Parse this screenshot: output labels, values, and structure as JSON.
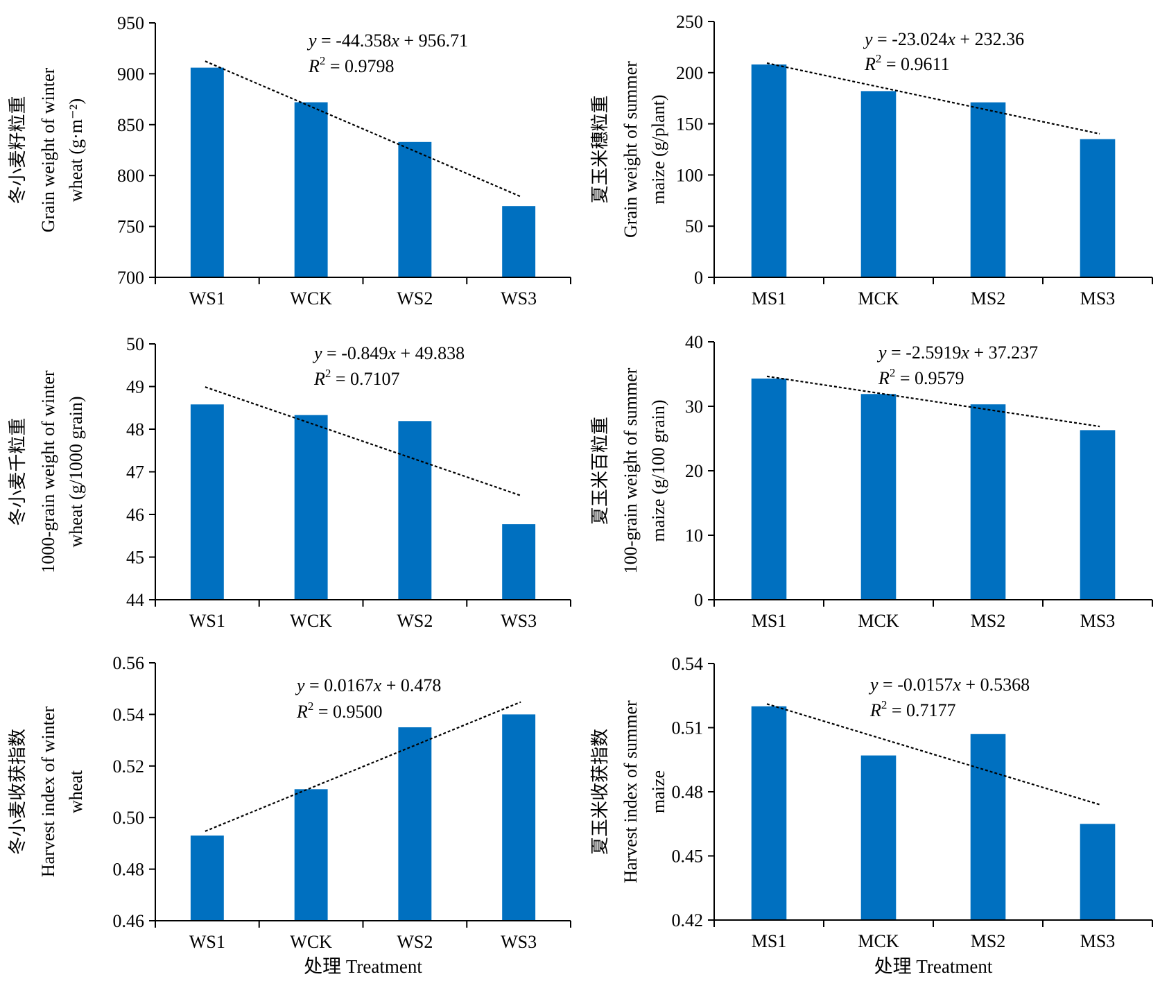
{
  "bar_color": "#0070C0",
  "trend_color": "#000000",
  "chart_data": [
    {
      "type": "bar",
      "id": "wheat-grain-weight",
      "categories": [
        "WS1",
        "WCK",
        "WS2",
        "WS3"
      ],
      "values": [
        906,
        872,
        833,
        770
      ],
      "ylim": [
        700,
        950
      ],
      "yticks": [
        "700",
        "750",
        "800",
        "850",
        "900",
        "950"
      ],
      "ylabel": [
        "冬小麦籽粒重",
        "Grain weight of winter",
        "wheat (g·m⁻²)"
      ],
      "xlabel": "",
      "trendline": {
        "slope": -44.358,
        "intercept": 956.71
      },
      "equation": {
        "lhs": "y",
        "rhs": " = -44.358",
        "x": "x",
        "tail": " + 956.71",
        "r_label": "R",
        "r_sup": "2",
        "r_value": " = 0.9798"
      }
    },
    {
      "type": "bar",
      "id": "maize-grain-weight",
      "categories": [
        "MS1",
        "MCK",
        "MS2",
        "MS3"
      ],
      "values": [
        208,
        182,
        171,
        135
      ],
      "ylim": [
        0,
        250
      ],
      "yticks": [
        "0",
        "50",
        "100",
        "150",
        "200",
        "250"
      ],
      "ylabel": [
        "夏玉米穗粒重",
        "Grain weight of summer",
        "maize (g/plant)"
      ],
      "xlabel": "",
      "trendline": {
        "slope": -23.024,
        "intercept": 232.36
      },
      "equation": {
        "lhs": "y",
        "rhs": " = -23.024",
        "x": "x",
        "tail": " + 232.36",
        "r_label": "R",
        "r_sup": "2",
        "r_value": " = 0.9611"
      }
    },
    {
      "type": "bar",
      "id": "wheat-1000-grain-weight",
      "categories": [
        "WS1",
        "WCK",
        "WS2",
        "WS3"
      ],
      "values": [
        48.58,
        48.33,
        48.19,
        45.77
      ],
      "ylim": [
        44,
        50
      ],
      "yticks": [
        "44",
        "45",
        "46",
        "47",
        "48",
        "49",
        "50"
      ],
      "ylabel": [
        "冬小麦千粒重",
        "1000-grain weight of winter",
        "wheat (g/1000 grain)"
      ],
      "xlabel": "",
      "trendline": {
        "slope": -0.849,
        "intercept": 49.838
      },
      "equation": {
        "lhs": "y",
        "rhs": " = -0.849",
        "x": "x",
        "tail": " + 49.838",
        "r_label": "R",
        "r_sup": "2",
        "r_value": " = 0.7107"
      }
    },
    {
      "type": "bar",
      "id": "maize-100-grain-weight",
      "categories": [
        "MS1",
        "MCK",
        "MS2",
        "MS3"
      ],
      "values": [
        34.3,
        31.9,
        30.3,
        26.3
      ],
      "ylim": [
        0,
        40
      ],
      "yticks": [
        "0",
        "10",
        "20",
        "30",
        "40"
      ],
      "ylabel": [
        "夏玉米百粒重",
        "100-grain weight of summer",
        "maize (g/100 grain)"
      ],
      "xlabel": "",
      "trendline": {
        "slope": -2.5919,
        "intercept": 37.237
      },
      "equation": {
        "lhs": "y",
        "rhs": " = -2.5919",
        "x": "x",
        "tail": " + 37.237",
        "r_label": "R",
        "r_sup": "2",
        "r_value": " = 0.9579"
      }
    },
    {
      "type": "bar",
      "id": "wheat-harvest-index",
      "categories": [
        "WS1",
        "WCK",
        "WS2",
        "WS3"
      ],
      "values": [
        0.493,
        0.511,
        0.535,
        0.54
      ],
      "ylim": [
        0.46,
        0.56
      ],
      "yticks": [
        "0.46",
        "0.48",
        "0.50",
        "0.52",
        "0.54",
        "0.56"
      ],
      "ylabel": [
        "冬小麦收获指数",
        "Harvest index of winter",
        "wheat"
      ],
      "xlabel": "处理 Treatment",
      "trendline": {
        "slope": 0.0167,
        "intercept": 0.478
      },
      "equation": {
        "lhs": "y",
        "rhs": " = 0.0167",
        "x": "x",
        "tail": " + 0.478",
        "r_label": "R",
        "r_sup": "2",
        "r_value": " = 0.9500"
      }
    },
    {
      "type": "bar",
      "id": "maize-harvest-index",
      "categories": [
        "MS1",
        "MCK",
        "MS2",
        "MS3"
      ],
      "values": [
        0.52,
        0.497,
        0.507,
        0.465
      ],
      "ylim": [
        0.42,
        0.54
      ],
      "yticks": [
        "0.42",
        "0.45",
        "0.48",
        "0.51",
        "0.54"
      ],
      "ylabel": [
        "夏玉米收获指数",
        "Harvest index of summer",
        "maize"
      ],
      "xlabel": "处理 Treatment",
      "trendline": {
        "slope": -0.0157,
        "intercept": 0.5368
      },
      "equation": {
        "lhs": "y",
        "rhs": " = -0.0157",
        "x": "x",
        "tail": " + 0.5368",
        "r_label": "R",
        "r_sup": "2",
        "r_value": " = 0.7177"
      }
    }
  ]
}
